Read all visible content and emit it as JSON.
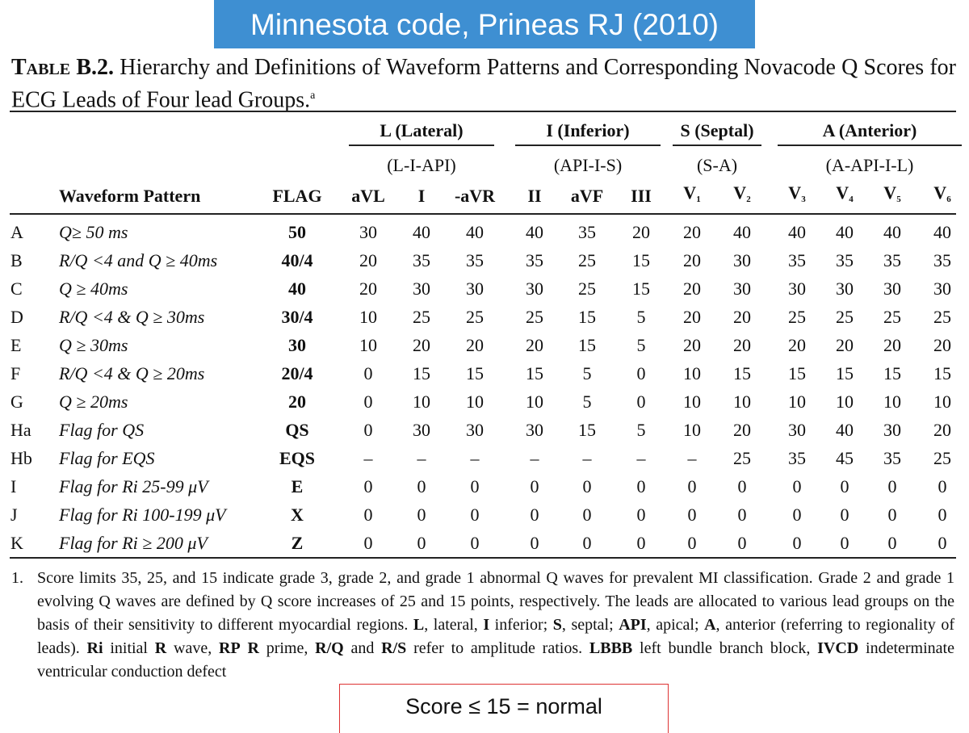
{
  "banner": "Minnesota code, Prineas RJ (2010)",
  "table": {
    "label": "Table B.2.",
    "title": "Hierarchy and Definitions of Waveform Patterns and Corresponding Novacode Q Scores for ECG Leads of Four lead Groups.",
    "title_note": "a",
    "groups": [
      {
        "name": "L (Lateral)",
        "leads": "(L-I-API)",
        "span": 3
      },
      {
        "name": "I (Inferior)",
        "leads": "(API-I-S)",
        "span": 3
      },
      {
        "name": "S (Septal)",
        "leads": "(S-A)",
        "span": 2
      },
      {
        "name": "A (Anterior)",
        "leads": "(A-API-I-L)",
        "span": 4
      }
    ],
    "pattern_header": "Waveform Pattern",
    "flag_header": "FLAG",
    "leads": [
      {
        "name": "aVL"
      },
      {
        "name": "I"
      },
      {
        "name": "-aVR"
      },
      {
        "name": "II"
      },
      {
        "name": "aVF"
      },
      {
        "name": "III"
      },
      {
        "name": "V",
        "sub": "1"
      },
      {
        "name": "V",
        "sub": "2"
      },
      {
        "name": "V",
        "sub": "3"
      },
      {
        "name": "V",
        "sub": "4"
      },
      {
        "name": "V",
        "sub": "5"
      },
      {
        "name": "V",
        "sub": "6"
      }
    ],
    "rows": [
      {
        "label": "A",
        "pattern": "Q≥ 50 ms",
        "flag": "50",
        "scores": [
          30,
          40,
          40,
          40,
          35,
          20,
          20,
          40,
          40,
          40,
          40,
          40
        ]
      },
      {
        "label": "B",
        "pattern": "R/Q <4 and Q ≥ 40ms",
        "flag": "40/4",
        "scores": [
          20,
          35,
          35,
          35,
          25,
          15,
          20,
          30,
          35,
          35,
          35,
          35
        ]
      },
      {
        "label": "C",
        "pattern": "Q ≥ 40ms",
        "flag": "40",
        "scores": [
          20,
          30,
          30,
          30,
          25,
          15,
          20,
          30,
          30,
          30,
          30,
          30
        ]
      },
      {
        "label": "D",
        "pattern": "R/Q <4 & Q ≥ 30ms",
        "flag": "30/4",
        "scores": [
          10,
          25,
          25,
          25,
          15,
          5,
          20,
          20,
          25,
          25,
          25,
          25
        ]
      },
      {
        "label": "E",
        "pattern": "Q ≥ 30ms",
        "flag": "30",
        "scores": [
          10,
          20,
          20,
          20,
          15,
          5,
          20,
          20,
          20,
          20,
          20,
          20
        ]
      },
      {
        "label": "F",
        "pattern": "R/Q <4 & Q ≥ 20ms",
        "flag": "20/4",
        "scores": [
          0,
          15,
          15,
          15,
          5,
          0,
          10,
          15,
          15,
          15,
          15,
          15
        ]
      },
      {
        "label": "G",
        "pattern": "Q ≥ 20ms",
        "flag": "20",
        "scores": [
          0,
          10,
          10,
          10,
          5,
          0,
          10,
          10,
          10,
          10,
          10,
          10
        ]
      },
      {
        "label": "Ha",
        "pattern": "Flag for QS",
        "flag": "QS",
        "scores": [
          0,
          30,
          30,
          30,
          15,
          5,
          10,
          20,
          30,
          40,
          30,
          20
        ]
      },
      {
        "label": "Hb",
        "pattern": "Flag for EQS",
        "flag": "EQS",
        "scores": [
          "–",
          "–",
          "–",
          "–",
          "–",
          "–",
          "–",
          25,
          35,
          45,
          35,
          25
        ]
      },
      {
        "label": "I",
        "pattern": "Flag for Ri 25-99 μV",
        "flag": "E",
        "scores": [
          0,
          0,
          0,
          0,
          0,
          0,
          0,
          0,
          0,
          0,
          0,
          0
        ]
      },
      {
        "label": "J",
        "pattern": "Flag for Ri 100-199 μV",
        "flag": "X",
        "scores": [
          0,
          0,
          0,
          0,
          0,
          0,
          0,
          0,
          0,
          0,
          0,
          0
        ]
      },
      {
        "label": "K",
        "pattern": "Flag for Ri ≥ 200 μV",
        "flag": "Z",
        "scores": [
          0,
          0,
          0,
          0,
          0,
          0,
          0,
          0,
          0,
          0,
          0,
          0
        ]
      }
    ],
    "footnote": {
      "number": "1.",
      "segments": [
        {
          "text": "Score limits 35, 25, and 15 indicate grade 3, grade 2, and grade 1 abnormal Q waves for prevalent MI classification. Grade 2 and   grade 1 evolving Q waves are defined by Q score increases of 25 and 15 points, respectively. The leads are allocated to various lead groups on the basis of their sensitivity to different myocardial regions. "
        },
        {
          "text": "L",
          "bold": true
        },
        {
          "text": ", lateral, "
        },
        {
          "text": "I",
          "bold": true
        },
        {
          "text": " inferior; "
        },
        {
          "text": "S",
          "bold": true
        },
        {
          "text": ", septal; "
        },
        {
          "text": "API",
          "bold": true
        },
        {
          "text": ", apical; "
        },
        {
          "text": "A",
          "bold": true
        },
        {
          "text": ", anterior (referring to regionality of leads). "
        },
        {
          "text": "Ri",
          "bold": true
        },
        {
          "text": " initial "
        },
        {
          "text": "R",
          "bold": true
        },
        {
          "text": " wave, "
        },
        {
          "text": "RP",
          "bold": true
        },
        {
          "text": " "
        },
        {
          "text": "R",
          "bold": true
        },
        {
          "text": " prime, "
        },
        {
          "text": "R/Q",
          "bold": true
        },
        {
          "text": " and "
        },
        {
          "text": "R/S",
          "bold": true
        },
        {
          "text": " refer to amplitude ratios. "
        },
        {
          "text": "LBBB",
          "bold": true
        },
        {
          "text": " left bundle branch block, "
        },
        {
          "text": "IVCD",
          "bold": true
        },
        {
          "text": " indeterminate ventricular conduction defect"
        }
      ]
    }
  },
  "note": "Score ≤ 15 = normal"
}
